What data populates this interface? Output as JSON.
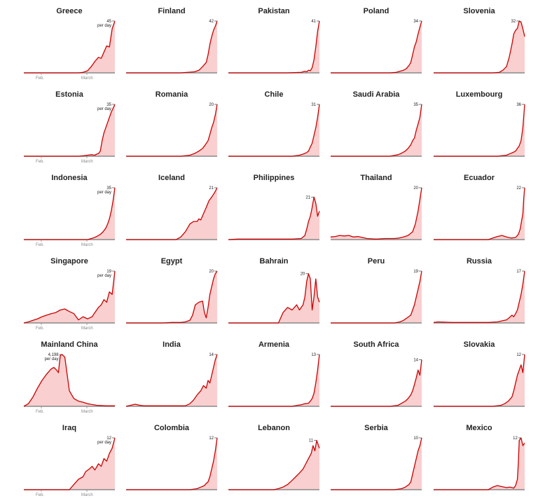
{
  "chart_data": [
    {
      "type": "area",
      "title": "Greece",
      "peak_label": "45",
      "unit_label": "per day",
      "x": [
        0,
        0.6,
        0.65,
        0.7,
        0.74,
        0.78,
        0.82,
        0.85,
        0.88,
        0.91,
        0.94,
        0.97,
        1
      ],
      "values": [
        0,
        0,
        0.01,
        0.04,
        0.12,
        0.22,
        0.3,
        0.28,
        0.4,
        0.52,
        0.5,
        0.85,
        1
      ]
    },
    {
      "type": "area",
      "title": "Finland",
      "peak_label": "42",
      "x": [
        0,
        0.6,
        0.75,
        0.8,
        0.84,
        0.88,
        0.9,
        0.92,
        0.94,
        0.96,
        0.98,
        1
      ],
      "values": [
        0,
        0,
        0.02,
        0.05,
        0.12,
        0.2,
        0.35,
        0.55,
        0.7,
        0.82,
        0.9,
        1
      ]
    },
    {
      "type": "area",
      "title": "Pakistan",
      "peak_label": "41",
      "x": [
        0,
        0.65,
        0.8,
        0.84,
        0.86,
        0.88,
        0.9,
        0.92,
        0.94,
        0.96,
        0.98,
        1
      ],
      "values": [
        0,
        0,
        0.01,
        0.03,
        0.02,
        0.05,
        0.04,
        0.1,
        0.25,
        0.5,
        0.8,
        1
      ]
    },
    {
      "type": "area",
      "title": "Poland",
      "peak_label": "34",
      "x": [
        0,
        0.65,
        0.72,
        0.76,
        0.8,
        0.83,
        0.86,
        0.88,
        0.9,
        0.92,
        0.94,
        0.96,
        0.98,
        1
      ],
      "values": [
        0,
        0,
        0.01,
        0.03,
        0.05,
        0.08,
        0.14,
        0.2,
        0.35,
        0.5,
        0.6,
        0.75,
        0.88,
        1
      ]
    },
    {
      "type": "area",
      "title": "Slovenia",
      "peak_label": "32",
      "x": [
        0,
        0.65,
        0.72,
        0.76,
        0.8,
        0.83,
        0.86,
        0.88,
        0.9,
        0.92,
        0.94,
        0.96,
        0.98,
        1
      ],
      "values": [
        0,
        0,
        0.01,
        0.05,
        0.12,
        0.3,
        0.55,
        0.75,
        0.82,
        0.86,
        1,
        0.98,
        0.85,
        0.7
      ]
    },
    {
      "type": "area",
      "title": "Estonia",
      "peak_label": "35",
      "unit_label": "per day",
      "x": [
        0,
        0.6,
        0.66,
        0.7,
        0.74,
        0.78,
        0.8,
        0.82,
        0.84,
        0.86,
        0.88,
        0.9,
        0.93,
        0.96,
        1
      ],
      "values": [
        0,
        0,
        0.01,
        0.02,
        0.03,
        0.02,
        0.04,
        0.05,
        0.1,
        0.3,
        0.45,
        0.55,
        0.7,
        0.85,
        1
      ]
    },
    {
      "type": "area",
      "title": "Romania",
      "peak_label": "20",
      "x": [
        0,
        0.6,
        0.7,
        0.75,
        0.8,
        0.84,
        0.87,
        0.9,
        0.92,
        0.94,
        0.96,
        0.98,
        1
      ],
      "values": [
        0,
        0,
        0.02,
        0.05,
        0.1,
        0.15,
        0.22,
        0.3,
        0.42,
        0.55,
        0.65,
        0.8,
        1
      ]
    },
    {
      "type": "area",
      "title": "Chile",
      "peak_label": "31",
      "x": [
        0,
        0.7,
        0.78,
        0.82,
        0.86,
        0.88,
        0.9,
        0.92,
        0.94,
        0.96,
        0.98,
        1
      ],
      "values": [
        0,
        0,
        0.02,
        0.04,
        0.07,
        0.1,
        0.18,
        0.25,
        0.4,
        0.55,
        0.75,
        1
      ]
    },
    {
      "type": "area",
      "title": "Saudi Arabia",
      "peak_label": "35",
      "x": [
        0,
        0.65,
        0.74,
        0.78,
        0.82,
        0.85,
        0.88,
        0.9,
        0.92,
        0.94,
        0.96,
        0.98,
        1
      ],
      "values": [
        0,
        0,
        0.03,
        0.06,
        0.1,
        0.15,
        0.22,
        0.3,
        0.35,
        0.5,
        0.62,
        0.75,
        1
      ]
    },
    {
      "type": "area",
      "title": "Luxembourg",
      "peak_label": "36",
      "x": [
        0,
        0.7,
        0.8,
        0.84,
        0.88,
        0.9,
        0.92,
        0.94,
        0.96,
        0.98,
        1
      ],
      "values": [
        0,
        0,
        0.02,
        0.05,
        0.08,
        0.1,
        0.15,
        0.2,
        0.3,
        0.55,
        1
      ]
    },
    {
      "type": "area",
      "title": "Indonesia",
      "peak_label": "35",
      "unit_label": "per day",
      "x": [
        0,
        0.7,
        0.76,
        0.8,
        0.84,
        0.87,
        0.9,
        0.92,
        0.94,
        0.96,
        0.98,
        1
      ],
      "values": [
        0,
        0,
        0.03,
        0.06,
        0.1,
        0.15,
        0.22,
        0.3,
        0.4,
        0.55,
        0.75,
        1
      ]
    },
    {
      "type": "area",
      "title": "Iceland",
      "peak_label": "21",
      "x": [
        0,
        0.55,
        0.6,
        0.65,
        0.7,
        0.74,
        0.78,
        0.8,
        0.82,
        0.85,
        0.88,
        0.91,
        0.94,
        0.97,
        1
      ],
      "values": [
        0,
        0,
        0.05,
        0.15,
        0.3,
        0.35,
        0.35,
        0.4,
        0.38,
        0.5,
        0.62,
        0.75,
        0.82,
        0.9,
        1
      ]
    },
    {
      "type": "area",
      "title": "Philippines",
      "peak_label": "21",
      "x": [
        0,
        0.1,
        0.3,
        0.5,
        0.7,
        0.8,
        0.84,
        0.86,
        0.88,
        0.9,
        0.92,
        0.94,
        0.96,
        0.98,
        1
      ],
      "values": [
        0,
        0.01,
        0.01,
        0.01,
        0.01,
        0.02,
        0.08,
        0.2,
        0.35,
        0.45,
        0.62,
        0.82,
        0.7,
        0.45,
        0.55
      ]
    },
    {
      "type": "area",
      "title": "Thailand",
      "peak_label": "20",
      "x": [
        0,
        0.05,
        0.1,
        0.15,
        0.2,
        0.25,
        0.3,
        0.35,
        0.4,
        0.5,
        0.6,
        0.7,
        0.75,
        0.8,
        0.85,
        0.9,
        0.93,
        0.96,
        1
      ],
      "values": [
        0.05,
        0.06,
        0.08,
        0.07,
        0.08,
        0.05,
        0.06,
        0.04,
        0.02,
        0.01,
        0.02,
        0.02,
        0.03,
        0.05,
        0.08,
        0.15,
        0.3,
        0.55,
        1
      ]
    },
    {
      "type": "area",
      "title": "Ecuador",
      "peak_label": "22",
      "x": [
        0,
        0.6,
        0.65,
        0.7,
        0.75,
        0.8,
        0.85,
        0.9,
        0.93,
        0.95,
        0.97,
        0.98,
        0.99,
        1
      ],
      "values": [
        0,
        0,
        0.03,
        0.06,
        0.08,
        0.05,
        0.03,
        0.04,
        0.1,
        0.2,
        0.4,
        0.5,
        0.8,
        1
      ]
    },
    {
      "type": "area",
      "title": "Singapore",
      "peak_label": "19",
      "unit_label": "per day",
      "x": [
        0,
        0.05,
        0.1,
        0.15,
        0.2,
        0.25,
        0.3,
        0.35,
        0.4,
        0.45,
        0.5,
        0.55,
        0.6,
        0.65,
        0.7,
        0.75,
        0.78,
        0.82,
        0.85,
        0.88,
        0.91,
        0.94,
        0.97,
        1
      ],
      "values": [
        0,
        0.02,
        0.05,
        0.08,
        0.12,
        0.15,
        0.18,
        0.2,
        0.25,
        0.27,
        0.22,
        0.18,
        0.06,
        0.12,
        0.08,
        0.12,
        0.2,
        0.3,
        0.35,
        0.45,
        0.4,
        0.6,
        0.55,
        1
      ]
    },
    {
      "type": "area",
      "title": "Egypt",
      "peak_label": "20",
      "x": [
        0,
        0.4,
        0.5,
        0.6,
        0.65,
        0.7,
        0.73,
        0.76,
        0.8,
        0.84,
        0.86,
        0.88,
        0.9,
        0.92,
        0.94,
        0.96,
        0.98,
        1
      ],
      "values": [
        0,
        0,
        0.01,
        0.01,
        0.02,
        0.05,
        0.15,
        0.35,
        0.4,
        0.42,
        0.2,
        0.1,
        0.3,
        0.55,
        0.7,
        0.85,
        0.95,
        1
      ]
    },
    {
      "type": "area",
      "title": "Bahrain",
      "peak_label": "20",
      "x": [
        0,
        0.55,
        0.6,
        0.65,
        0.7,
        0.75,
        0.78,
        0.8,
        0.82,
        0.84,
        0.86,
        0.88,
        0.9,
        0.92,
        0.94,
        0.96,
        0.98,
        1
      ],
      "values": [
        0,
        0,
        0.2,
        0.3,
        0.25,
        0.35,
        0.25,
        0.3,
        0.35,
        0.5,
        0.8,
        0.95,
        0.85,
        0.25,
        0.5,
        0.85,
        0.5,
        0.4
      ]
    },
    {
      "type": "area",
      "title": "Peru",
      "peak_label": "19",
      "x": [
        0,
        0.7,
        0.76,
        0.8,
        0.84,
        0.88,
        0.9,
        0.92,
        0.94,
        0.96,
        0.98,
        1
      ],
      "values": [
        0,
        0,
        0.02,
        0.05,
        0.1,
        0.15,
        0.25,
        0.35,
        0.5,
        0.65,
        0.8,
        1
      ]
    },
    {
      "type": "area",
      "title": "Russia",
      "peak_label": "17",
      "x": [
        0,
        0.05,
        0.2,
        0.4,
        0.6,
        0.7,
        0.75,
        0.8,
        0.83,
        0.86,
        0.88,
        0.9,
        0.92,
        0.94,
        0.96,
        0.98,
        1
      ],
      "values": [
        0.01,
        0.02,
        0.01,
        0.01,
        0.01,
        0.02,
        0.04,
        0.06,
        0.1,
        0.15,
        0.12,
        0.18,
        0.25,
        0.4,
        0.55,
        0.75,
        1
      ]
    },
    {
      "type": "area",
      "title": "Mainland China",
      "peak_label": "4,198",
      "unit_label": "per day",
      "x": [
        0,
        0.05,
        0.1,
        0.15,
        0.2,
        0.25,
        0.3,
        0.33,
        0.36,
        0.38,
        0.4,
        0.42,
        0.45,
        0.5,
        0.55,
        0.6,
        0.65,
        0.7,
        0.8,
        0.9,
        1
      ],
      "values": [
        0,
        0.05,
        0.18,
        0.35,
        0.5,
        0.62,
        0.72,
        0.75,
        0.7,
        0.65,
        0.98,
        1,
        0.95,
        0.3,
        0.15,
        0.1,
        0.08,
        0.05,
        0.02,
        0.01,
        0.01
      ]
    },
    {
      "type": "area",
      "title": "India",
      "peak_label": "14",
      "x": [
        0,
        0.05,
        0.1,
        0.15,
        0.2,
        0.3,
        0.5,
        0.65,
        0.7,
        0.74,
        0.78,
        0.82,
        0.85,
        0.88,
        0.9,
        0.92,
        0.94,
        0.96,
        0.98,
        1
      ],
      "values": [
        0,
        0.02,
        0.04,
        0.02,
        0.01,
        0.01,
        0.01,
        0.01,
        0.05,
        0.12,
        0.22,
        0.3,
        0.4,
        0.35,
        0.5,
        0.45,
        0.6,
        0.75,
        0.9,
        1
      ]
    },
    {
      "type": "area",
      "title": "Armenia",
      "peak_label": "13",
      "x": [
        0,
        0.7,
        0.76,
        0.8,
        0.84,
        0.88,
        0.9,
        0.92,
        0.94,
        0.96,
        0.98,
        1
      ],
      "values": [
        0,
        0,
        0.02,
        0.03,
        0.05,
        0.06,
        0.1,
        0.15,
        0.25,
        0.45,
        0.7,
        1
      ]
    },
    {
      "type": "area",
      "title": "South Africa",
      "peak_label": "14",
      "x": [
        0,
        0.65,
        0.74,
        0.78,
        0.82,
        0.85,
        0.88,
        0.9,
        0.92,
        0.94,
        0.96,
        0.98,
        1
      ],
      "values": [
        0,
        0,
        0.02,
        0.06,
        0.1,
        0.15,
        0.22,
        0.3,
        0.42,
        0.55,
        0.7,
        0.6,
        0.9
      ]
    },
    {
      "type": "area",
      "title": "Slovakia",
      "peak_label": "12",
      "x": [
        0,
        0.65,
        0.74,
        0.78,
        0.82,
        0.86,
        0.88,
        0.9,
        0.92,
        0.94,
        0.96,
        0.98,
        1
      ],
      "values": [
        0,
        0,
        0.02,
        0.05,
        0.1,
        0.18,
        0.3,
        0.45,
        0.6,
        0.7,
        0.8,
        0.65,
        1
      ]
    },
    {
      "type": "area",
      "title": "Iraq",
      "peak_label": "12",
      "unit_label": "per day",
      "x": [
        0,
        0.5,
        0.55,
        0.6,
        0.65,
        0.68,
        0.72,
        0.75,
        0.78,
        0.82,
        0.85,
        0.88,
        0.91,
        0.94,
        0.97,
        1
      ],
      "values": [
        0,
        0,
        0.1,
        0.2,
        0.25,
        0.35,
        0.4,
        0.45,
        0.38,
        0.5,
        0.45,
        0.6,
        0.55,
        0.7,
        0.8,
        1
      ]
    },
    {
      "type": "area",
      "title": "Colombia",
      "peak_label": "12",
      "x": [
        0,
        0.7,
        0.78,
        0.82,
        0.86,
        0.88,
        0.9,
        0.92,
        0.94,
        0.96,
        0.98,
        1
      ],
      "values": [
        0,
        0,
        0.02,
        0.05,
        0.08,
        0.12,
        0.15,
        0.25,
        0.4,
        0.55,
        0.75,
        1
      ]
    },
    {
      "type": "area",
      "title": "Lebanon",
      "peak_label": "11",
      "x": [
        0,
        0.5,
        0.55,
        0.6,
        0.65,
        0.7,
        0.74,
        0.78,
        0.82,
        0.85,
        0.88,
        0.91,
        0.93,
        0.95,
        0.97,
        1
      ],
      "values": [
        0,
        0,
        0.02,
        0.05,
        0.1,
        0.18,
        0.25,
        0.32,
        0.4,
        0.5,
        0.6,
        0.7,
        0.85,
        0.75,
        0.95,
        0.8
      ]
    },
    {
      "type": "area",
      "title": "Serbia",
      "peak_label": "10",
      "x": [
        0,
        0.7,
        0.78,
        0.82,
        0.86,
        0.88,
        0.9,
        0.92,
        0.94,
        0.96,
        0.98,
        1
      ],
      "values": [
        0,
        0,
        0.02,
        0.05,
        0.1,
        0.15,
        0.3,
        0.45,
        0.6,
        0.75,
        0.85,
        1
      ]
    },
    {
      "type": "area",
      "title": "Mexico",
      "peak_label": "12",
      "x": [
        0,
        0.6,
        0.65,
        0.7,
        0.75,
        0.8,
        0.84,
        0.88,
        0.9,
        0.92,
        0.93,
        0.94,
        0.96,
        0.98,
        1
      ],
      "values": [
        0,
        0,
        0.05,
        0.08,
        0.06,
        0.04,
        0.05,
        0.03,
        0.08,
        0.2,
        0.5,
        0.95,
        1,
        0.85,
        0.9
      ]
    }
  ],
  "axis_labels": {
    "feb": "Feb.",
    "march": "March"
  },
  "colors": {
    "line": "#cc0000",
    "fill": "#f9cfcf",
    "baseline": "#888888",
    "text": "#222222"
  }
}
